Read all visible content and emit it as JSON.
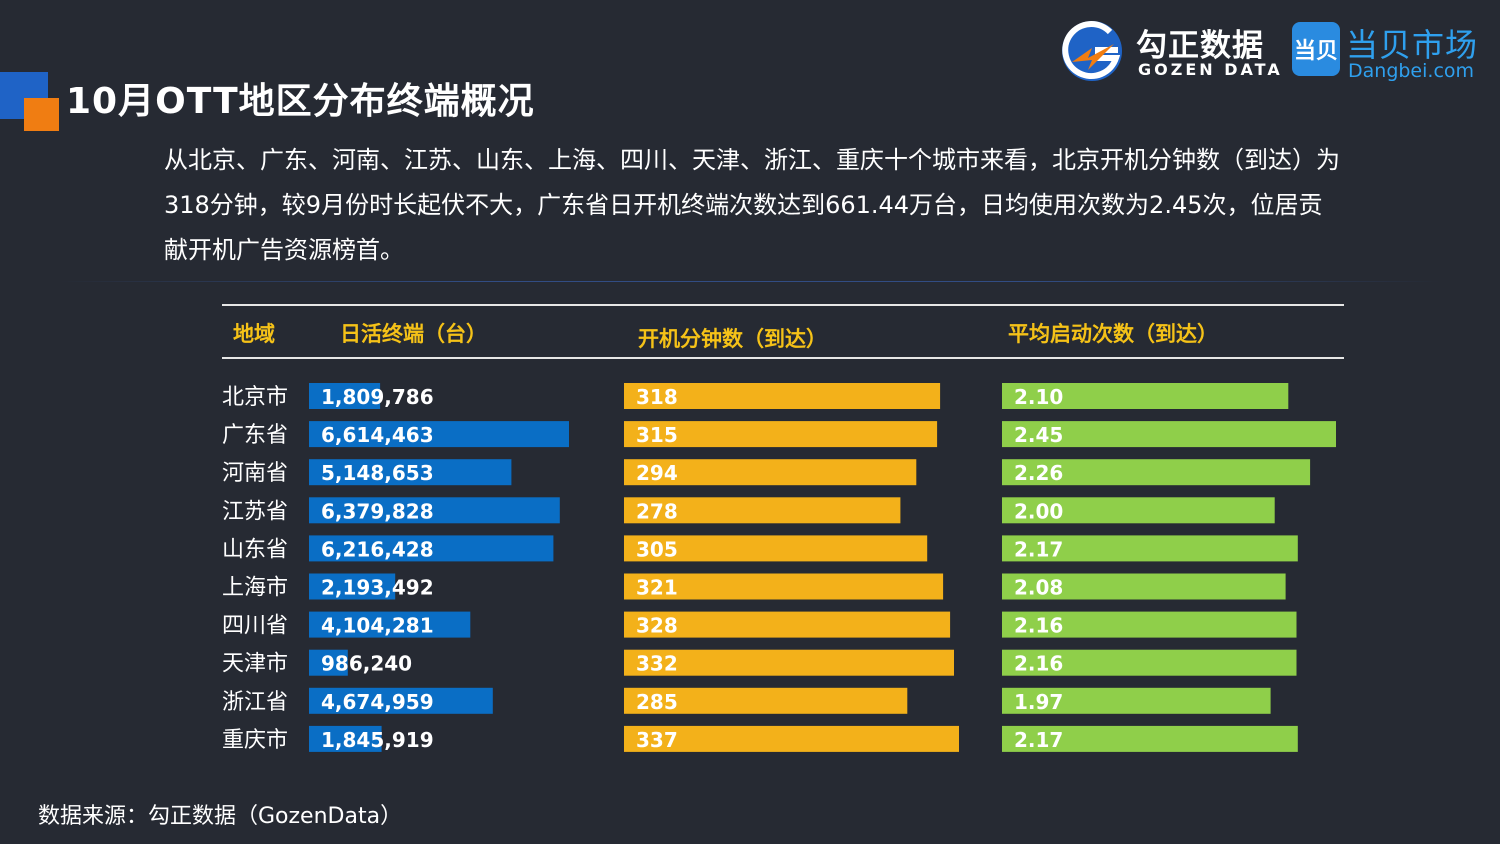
{
  "title": "10月OTT地区分布终端概况",
  "logos": {
    "gozen_name": "勾正数据",
    "gozen_sub": "GOZEN DATA",
    "dangbei_mark": "当贝",
    "dangbei_name": "当贝市场",
    "dangbei_sub": "Dangbei.com"
  },
  "description": "从北京、广东、河南、江苏、山东、上海、四川、天津、浙江、重庆十个城市来看，北京开机分钟数（到达）为318分钟，较9月份时长起伏不大，广东省日开机终端次数达到661.44万台，日均使用次数为2.45次，位居贡献开机广告资源榜首。",
  "source": "数据来源：勾正数据（GozenData）",
  "colors": {
    "background": "#262a33",
    "header_text": "#f5c218",
    "bar_terminals": "#0a6ec5",
    "bar_minutes": "#f3b11a",
    "bar_starts": "#8fcf4a",
    "accent_orange": "#f07d12",
    "accent_blue": "#1f63c6"
  },
  "chart_data": {
    "type": "bar",
    "columns": [
      "地域",
      "日活终端（台）",
      "开机分钟数（到达）",
      "平均启动次数（到达）"
    ],
    "categories": [
      "北京市",
      "广东省",
      "河南省",
      "江苏省",
      "山东省",
      "上海市",
      "四川省",
      "天津市",
      "浙江省",
      "重庆市"
    ],
    "series": [
      {
        "name": "日活终端（台）",
        "values": [
          1809786,
          6614463,
          5148653,
          6379828,
          6216428,
          2193492,
          4104281,
          986240,
          4674959,
          1845919
        ],
        "labels": [
          "1,809,786",
          "6,614,463",
          "5,148,653",
          "6,379,828",
          "6,216,428",
          "2,193,492",
          "4,104,281",
          "986,240",
          "4,674,959",
          "1,845,919"
        ]
      },
      {
        "name": "开机分钟数（到达）",
        "values": [
          318,
          315,
          294,
          278,
          305,
          321,
          328,
          332,
          285,
          337
        ],
        "labels": [
          "318",
          "315",
          "294",
          "278",
          "305",
          "321",
          "328",
          "332",
          "285",
          "337"
        ]
      },
      {
        "name": "平均启动次数（到达）",
        "values": [
          2.1,
          2.45,
          2.26,
          2.0,
          2.17,
          2.08,
          2.16,
          2.16,
          1.97,
          2.17
        ],
        "labels": [
          "2.10",
          "2.45",
          "2.26",
          "2.00",
          "2.17",
          "2.08",
          "2.16",
          "2.16",
          "1.97",
          "2.17"
        ]
      }
    ]
  }
}
